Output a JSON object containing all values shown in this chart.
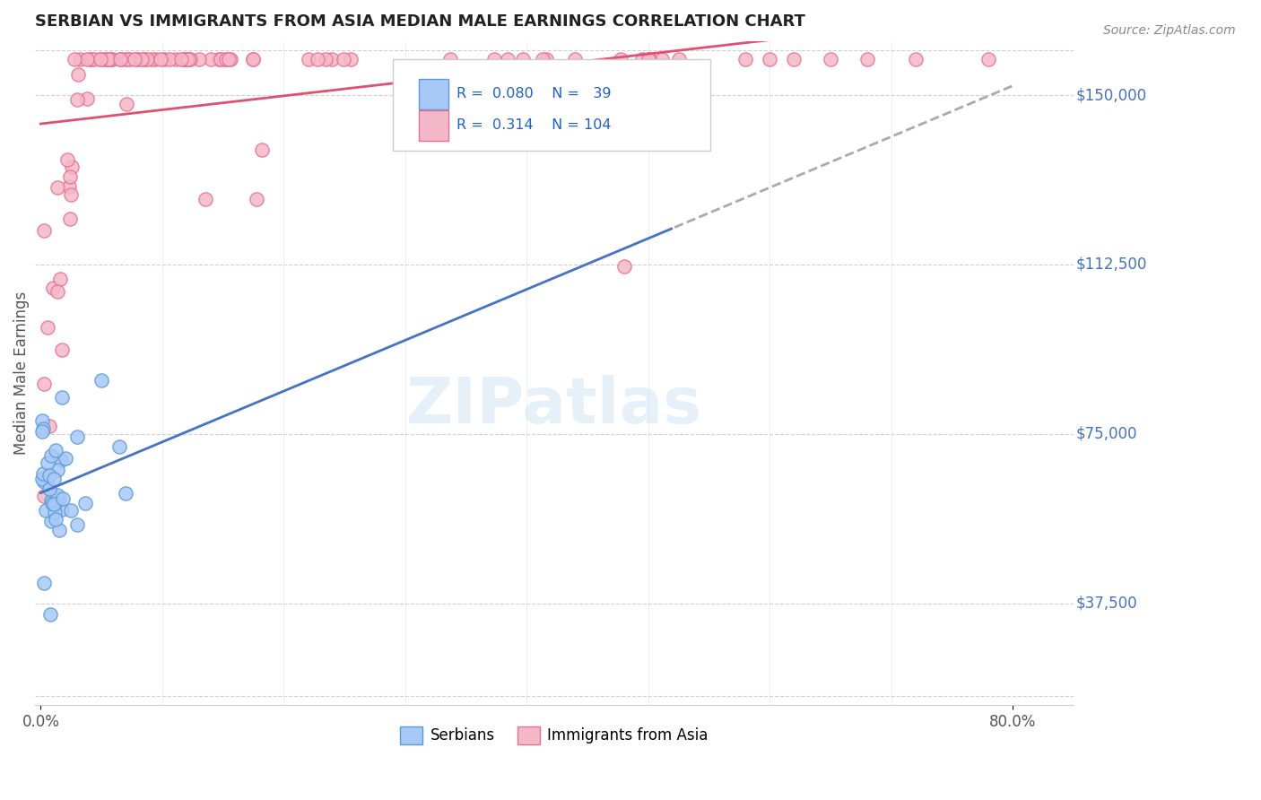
{
  "title": "SERBIAN VS IMMIGRANTS FROM ASIA MEDIAN MALE EARNINGS CORRELATION CHART",
  "source": "Source: ZipAtlas.com",
  "ylabel": "Median Male Earnings",
  "y_ticks": [
    37500,
    75000,
    112500,
    150000
  ],
  "y_tick_labels": [
    "$37,500",
    "$75,000",
    "$112,500",
    "$150,000"
  ],
  "y_min": 15000,
  "y_max": 162000,
  "x_min": -0.005,
  "x_max": 0.85,
  "serbian_color": "#a8c8f8",
  "serbian_edge_color": "#5b9bd5",
  "asian_color": "#f4b8c8",
  "asian_edge_color": "#e87090",
  "line_serbian_color": "#4472c4",
  "line_asian_color": "#e05070",
  "line_serbian_dashed_color": "#aaaaaa",
  "R_serbian": 0.08,
  "N_serbian": 39,
  "R_asian": 0.314,
  "N_asian": 104,
  "watermark": "ZIPatlas",
  "background_color": "#ffffff",
  "grid_color": "#d0d0d0"
}
